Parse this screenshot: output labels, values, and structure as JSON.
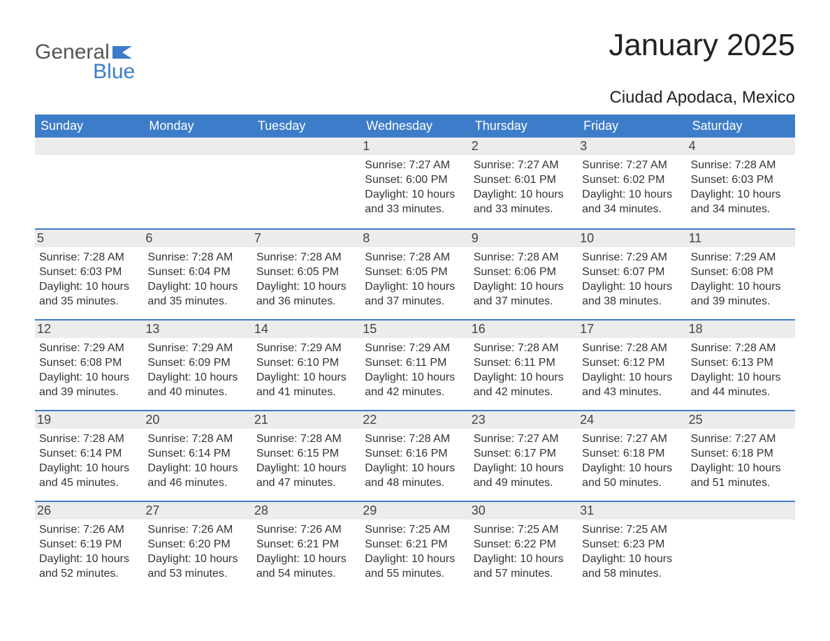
{
  "brand": {
    "general": "General",
    "blue": "Blue",
    "flag_color": "#3d7cc9"
  },
  "title": "January 2025",
  "location": "Ciudad Apodaca, Mexico",
  "colors": {
    "header_bg": "#3d7cc9",
    "header_text": "#ffffff",
    "band_bg": "#ececec",
    "row_border": "#3d7cc9",
    "body_text": "#333333",
    "page_bg": "#ffffff"
  },
  "days_of_week": [
    "Sunday",
    "Monday",
    "Tuesday",
    "Wednesday",
    "Thursday",
    "Friday",
    "Saturday"
  ],
  "weeks": [
    [
      {
        "day": "",
        "sunrise": "",
        "sunset": "",
        "daylight1": "",
        "daylight2": ""
      },
      {
        "day": "",
        "sunrise": "",
        "sunset": "",
        "daylight1": "",
        "daylight2": ""
      },
      {
        "day": "",
        "sunrise": "",
        "sunset": "",
        "daylight1": "",
        "daylight2": ""
      },
      {
        "day": "1",
        "sunrise": "Sunrise: 7:27 AM",
        "sunset": "Sunset: 6:00 PM",
        "daylight1": "Daylight: 10 hours",
        "daylight2": "and 33 minutes."
      },
      {
        "day": "2",
        "sunrise": "Sunrise: 7:27 AM",
        "sunset": "Sunset: 6:01 PM",
        "daylight1": "Daylight: 10 hours",
        "daylight2": "and 33 minutes."
      },
      {
        "day": "3",
        "sunrise": "Sunrise: 7:27 AM",
        "sunset": "Sunset: 6:02 PM",
        "daylight1": "Daylight: 10 hours",
        "daylight2": "and 34 minutes."
      },
      {
        "day": "4",
        "sunrise": "Sunrise: 7:28 AM",
        "sunset": "Sunset: 6:03 PM",
        "daylight1": "Daylight: 10 hours",
        "daylight2": "and 34 minutes."
      }
    ],
    [
      {
        "day": "5",
        "sunrise": "Sunrise: 7:28 AM",
        "sunset": "Sunset: 6:03 PM",
        "daylight1": "Daylight: 10 hours",
        "daylight2": "and 35 minutes."
      },
      {
        "day": "6",
        "sunrise": "Sunrise: 7:28 AM",
        "sunset": "Sunset: 6:04 PM",
        "daylight1": "Daylight: 10 hours",
        "daylight2": "and 35 minutes."
      },
      {
        "day": "7",
        "sunrise": "Sunrise: 7:28 AM",
        "sunset": "Sunset: 6:05 PM",
        "daylight1": "Daylight: 10 hours",
        "daylight2": "and 36 minutes."
      },
      {
        "day": "8",
        "sunrise": "Sunrise: 7:28 AM",
        "sunset": "Sunset: 6:05 PM",
        "daylight1": "Daylight: 10 hours",
        "daylight2": "and 37 minutes."
      },
      {
        "day": "9",
        "sunrise": "Sunrise: 7:28 AM",
        "sunset": "Sunset: 6:06 PM",
        "daylight1": "Daylight: 10 hours",
        "daylight2": "and 37 minutes."
      },
      {
        "day": "10",
        "sunrise": "Sunrise: 7:29 AM",
        "sunset": "Sunset: 6:07 PM",
        "daylight1": "Daylight: 10 hours",
        "daylight2": "and 38 minutes."
      },
      {
        "day": "11",
        "sunrise": "Sunrise: 7:29 AM",
        "sunset": "Sunset: 6:08 PM",
        "daylight1": "Daylight: 10 hours",
        "daylight2": "and 39 minutes."
      }
    ],
    [
      {
        "day": "12",
        "sunrise": "Sunrise: 7:29 AM",
        "sunset": "Sunset: 6:08 PM",
        "daylight1": "Daylight: 10 hours",
        "daylight2": "and 39 minutes."
      },
      {
        "day": "13",
        "sunrise": "Sunrise: 7:29 AM",
        "sunset": "Sunset: 6:09 PM",
        "daylight1": "Daylight: 10 hours",
        "daylight2": "and 40 minutes."
      },
      {
        "day": "14",
        "sunrise": "Sunrise: 7:29 AM",
        "sunset": "Sunset: 6:10 PM",
        "daylight1": "Daylight: 10 hours",
        "daylight2": "and 41 minutes."
      },
      {
        "day": "15",
        "sunrise": "Sunrise: 7:29 AM",
        "sunset": "Sunset: 6:11 PM",
        "daylight1": "Daylight: 10 hours",
        "daylight2": "and 42 minutes."
      },
      {
        "day": "16",
        "sunrise": "Sunrise: 7:28 AM",
        "sunset": "Sunset: 6:11 PM",
        "daylight1": "Daylight: 10 hours",
        "daylight2": "and 42 minutes."
      },
      {
        "day": "17",
        "sunrise": "Sunrise: 7:28 AM",
        "sunset": "Sunset: 6:12 PM",
        "daylight1": "Daylight: 10 hours",
        "daylight2": "and 43 minutes."
      },
      {
        "day": "18",
        "sunrise": "Sunrise: 7:28 AM",
        "sunset": "Sunset: 6:13 PM",
        "daylight1": "Daylight: 10 hours",
        "daylight2": "and 44 minutes."
      }
    ],
    [
      {
        "day": "19",
        "sunrise": "Sunrise: 7:28 AM",
        "sunset": "Sunset: 6:14 PM",
        "daylight1": "Daylight: 10 hours",
        "daylight2": "and 45 minutes."
      },
      {
        "day": "20",
        "sunrise": "Sunrise: 7:28 AM",
        "sunset": "Sunset: 6:14 PM",
        "daylight1": "Daylight: 10 hours",
        "daylight2": "and 46 minutes."
      },
      {
        "day": "21",
        "sunrise": "Sunrise: 7:28 AM",
        "sunset": "Sunset: 6:15 PM",
        "daylight1": "Daylight: 10 hours",
        "daylight2": "and 47 minutes."
      },
      {
        "day": "22",
        "sunrise": "Sunrise: 7:28 AM",
        "sunset": "Sunset: 6:16 PM",
        "daylight1": "Daylight: 10 hours",
        "daylight2": "and 48 minutes."
      },
      {
        "day": "23",
        "sunrise": "Sunrise: 7:27 AM",
        "sunset": "Sunset: 6:17 PM",
        "daylight1": "Daylight: 10 hours",
        "daylight2": "and 49 minutes."
      },
      {
        "day": "24",
        "sunrise": "Sunrise: 7:27 AM",
        "sunset": "Sunset: 6:18 PM",
        "daylight1": "Daylight: 10 hours",
        "daylight2": "and 50 minutes."
      },
      {
        "day": "25",
        "sunrise": "Sunrise: 7:27 AM",
        "sunset": "Sunset: 6:18 PM",
        "daylight1": "Daylight: 10 hours",
        "daylight2": "and 51 minutes."
      }
    ],
    [
      {
        "day": "26",
        "sunrise": "Sunrise: 7:26 AM",
        "sunset": "Sunset: 6:19 PM",
        "daylight1": "Daylight: 10 hours",
        "daylight2": "and 52 minutes."
      },
      {
        "day": "27",
        "sunrise": "Sunrise: 7:26 AM",
        "sunset": "Sunset: 6:20 PM",
        "daylight1": "Daylight: 10 hours",
        "daylight2": "and 53 minutes."
      },
      {
        "day": "28",
        "sunrise": "Sunrise: 7:26 AM",
        "sunset": "Sunset: 6:21 PM",
        "daylight1": "Daylight: 10 hours",
        "daylight2": "and 54 minutes."
      },
      {
        "day": "29",
        "sunrise": "Sunrise: 7:25 AM",
        "sunset": "Sunset: 6:21 PM",
        "daylight1": "Daylight: 10 hours",
        "daylight2": "and 55 minutes."
      },
      {
        "day": "30",
        "sunrise": "Sunrise: 7:25 AM",
        "sunset": "Sunset: 6:22 PM",
        "daylight1": "Daylight: 10 hours",
        "daylight2": "and 57 minutes."
      },
      {
        "day": "31",
        "sunrise": "Sunrise: 7:25 AM",
        "sunset": "Sunset: 6:23 PM",
        "daylight1": "Daylight: 10 hours",
        "daylight2": "and 58 minutes."
      },
      {
        "day": "",
        "sunrise": "",
        "sunset": "",
        "daylight1": "",
        "daylight2": ""
      }
    ]
  ]
}
